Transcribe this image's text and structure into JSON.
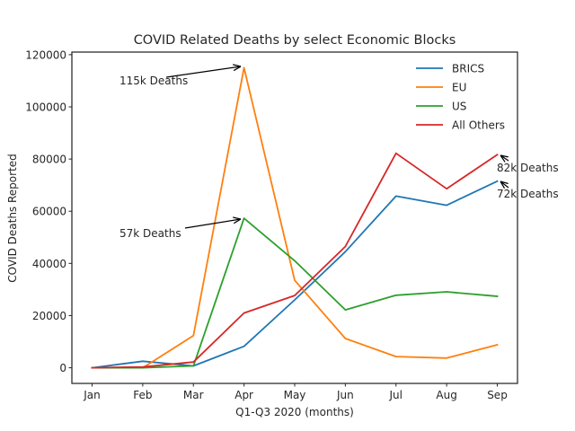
{
  "chart_data": {
    "type": "line",
    "title": "COVID Related Deaths by select Economic Blocks",
    "xlabel": "Q1-Q3 2020 (months)",
    "ylabel": "COVID Deaths Reported",
    "categories": [
      "Jan",
      "Feb",
      "Mar",
      "Apr",
      "May",
      "Jun",
      "Jul",
      "Aug",
      "Sep"
    ],
    "ylim": [
      -6000,
      121000
    ],
    "yticks": [
      0,
      20000,
      40000,
      60000,
      80000,
      100000,
      120000
    ],
    "grid": false,
    "legend_position": "top-right",
    "series": [
      {
        "name": "BRICS",
        "color": "#1f77b4",
        "values": [
          0,
          2500,
          700,
          8200,
          26000,
          44500,
          65800,
          62300,
          71500
        ]
      },
      {
        "name": "EU",
        "color": "#ff7f0e",
        "values": [
          0,
          0,
          12300,
          115000,
          33500,
          11200,
          4300,
          3700,
          8800
        ]
      },
      {
        "name": "US",
        "color": "#2ca02c",
        "values": [
          0,
          0,
          700,
          57300,
          41000,
          22200,
          27800,
          29100,
          27400
        ]
      },
      {
        "name": "All Others",
        "color": "#d62728",
        "values": [
          0,
          300,
          2200,
          21000,
          27700,
          46500,
          82200,
          68600,
          81700
        ]
      }
    ],
    "annotations": [
      {
        "text": "115k Deaths",
        "x": "Apr",
        "y": 115000
      },
      {
        "text": "57k Deaths",
        "x": "Apr",
        "y": 57000
      },
      {
        "text": "82k Deaths",
        "x": "Sep",
        "y": 82000
      },
      {
        "text": "72k Deaths",
        "x": "Sep",
        "y": 72000
      }
    ]
  }
}
